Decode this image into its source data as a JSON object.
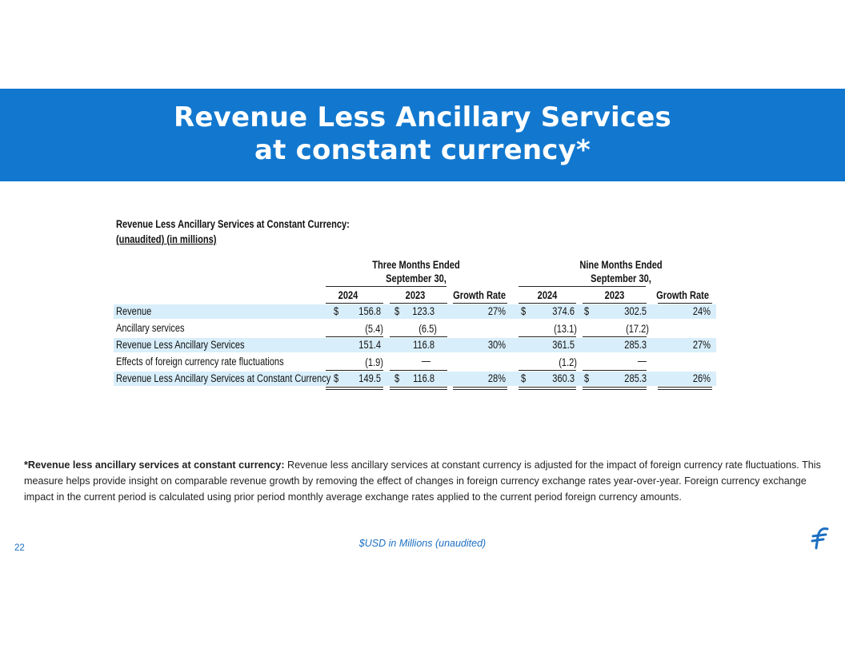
{
  "slide": {
    "title_line1": "Revenue Less Ancillary Services",
    "title_line2": "at constant currency*",
    "page_number": "22",
    "unit_note": "$USD in Millions (unaudited)"
  },
  "table": {
    "heading": "Revenue Less Ancillary Services at Constant Currency:",
    "subheading": "(unaudited) (in millions)",
    "group1_line1": "Three Months Ended",
    "group1_line2": "September 30,",
    "group2_line1": "Nine Months Ended",
    "group2_line2": "September 30,",
    "columns": [
      "2024",
      "2023",
      "Growth Rate",
      "2024",
      "2023",
      "Growth Rate"
    ],
    "rows": [
      {
        "label": "Revenue",
        "c1": "156.8",
        "c2": "123.3",
        "c3": "27%",
        "c4": "374.6",
        "c5": "302.5",
        "c6": "24%",
        "d1": "$",
        "d2": "$",
        "d4": "$",
        "d5": "$"
      },
      {
        "label": "Ancillary services",
        "c1": "(5.4)",
        "c2": "(6.5)",
        "c3": "",
        "c4": "(13.1)",
        "c5": "(17.2)",
        "c6": ""
      },
      {
        "label": "Revenue Less Ancillary Services",
        "c1": "151.4",
        "c2": "116.8",
        "c3": "30%",
        "c4": "361.5",
        "c5": "285.3",
        "c6": "27%"
      },
      {
        "label": "Effects of foreign currency rate fluctuations",
        "c1": "(1.9)",
        "c2": "—",
        "c3": "",
        "c4": "(1.2)",
        "c5": "—",
        "c6": ""
      },
      {
        "label": "Revenue Less Ancillary Services at Constant Currency",
        "c1": "149.5",
        "c2": "116.8",
        "c3": "28%",
        "c4": "360.3",
        "c5": "285.3",
        "c6": "26%",
        "d1": "$",
        "d2": "$",
        "d4": "$",
        "d5": "$"
      }
    ]
  },
  "footnote": {
    "label": "*Revenue less ancillary services at constant currency:",
    "text": "Revenue less ancillary services at constant currency is adjusted for the  impact of foreign currency rate fluctuations. This measure helps provide insight on comparable revenue growth by removing the effect of changes in foreign currency exchange rates year-over-year. Foreign currency exchange impact in the current period is calculated using prior period monthly average exchange rates applied to the current period foreign currency amounts."
  },
  "colors": {
    "banner": "#1278cf",
    "row_shade": "#d8eefa",
    "accent_text": "#1b6fc2"
  }
}
